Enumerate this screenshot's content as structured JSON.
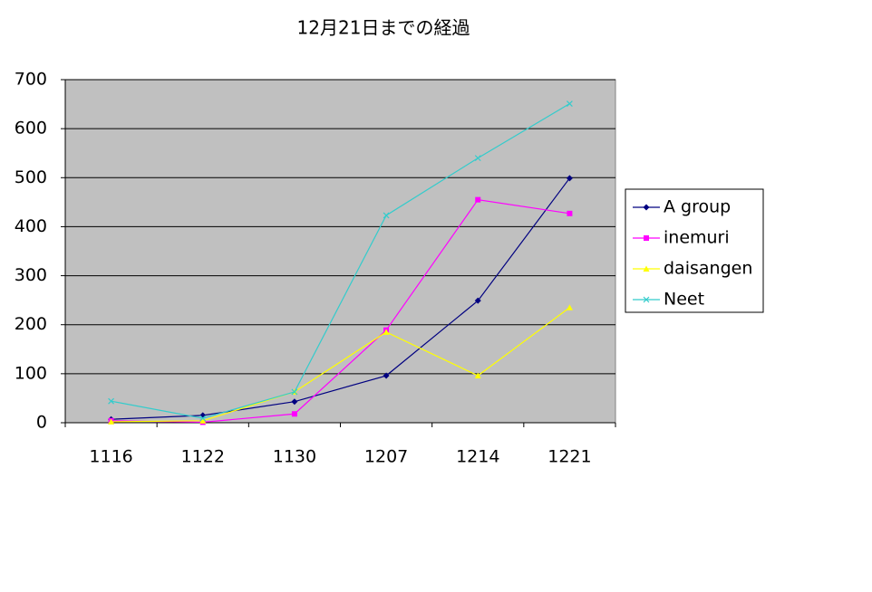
{
  "chart_data": {
    "type": "line",
    "title": "12月21日までの経過",
    "categories": [
      "1116",
      "1122",
      "1130",
      "1207",
      "1214",
      "1221"
    ],
    "series": [
      {
        "name": "A group",
        "color": "#000080",
        "marker": "diamond",
        "values": [
          7,
          15,
          43,
          96,
          249,
          499
        ]
      },
      {
        "name": "inemuri",
        "color": "#ff00ff",
        "marker": "square",
        "values": [
          4,
          1,
          18,
          189,
          455,
          427
        ]
      },
      {
        "name": "daisangen",
        "color": "#ffff00",
        "marker": "triangle",
        "values": [
          2,
          4,
          63,
          185,
          96,
          235
        ]
      },
      {
        "name": "Neet",
        "color": "#33cccc",
        "marker": "x",
        "values": [
          44,
          9,
          63,
          423,
          540,
          651
        ]
      }
    ],
    "ylim": [
      0,
      700
    ],
    "yticks": [
      0,
      100,
      200,
      300,
      400,
      500,
      600,
      700
    ],
    "grid": true,
    "legend": "right"
  }
}
